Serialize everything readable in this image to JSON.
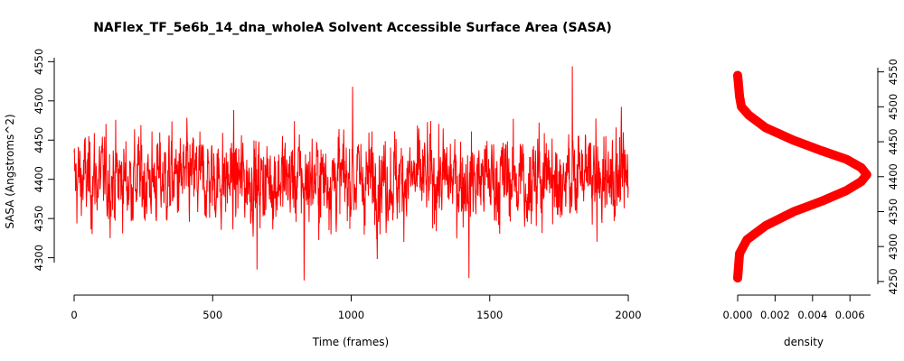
{
  "chart_data": [
    {
      "type": "line",
      "title": "NAFlex_TF_5e6b_14_dna_wholeA Solvent Accessible Surface Area (SASA)",
      "xlabel": "Time (frames)",
      "ylabel": "SASA (Angstroms^2)",
      "xlim": [
        0,
        2000
      ],
      "ylim": [
        4265,
        4555
      ],
      "x_ticks": [
        "0",
        "500",
        "1000",
        "1500",
        "2000"
      ],
      "y_ticks": [
        "4300",
        "4350",
        "4400",
        "4450",
        "4500",
        "4550"
      ],
      "grid": false,
      "color": "#ff0000",
      "series": [
        {
          "x": [
            0,
            2000
          ],
          "y_mean": 4400,
          "y_sd": 30,
          "y_min": 4271,
          "y_max": 4544,
          "peaks": [
            {
              "x": 1798,
              "y": 4544
            },
            {
              "x": 830,
              "y": 4271
            },
            {
              "x": 1425,
              "y": 4274
            },
            {
              "x": 1005,
              "y": 4518
            },
            {
              "x": 660,
              "y": 4285
            }
          ]
        }
      ]
    },
    {
      "type": "line",
      "title": "",
      "xlabel": "density",
      "ylabel": "",
      "xlim": [
        0,
        0.0071
      ],
      "ylim": [
        4246,
        4556
      ],
      "x_ticks": [
        "0.000",
        "0.002",
        "0.004",
        "0.006"
      ],
      "y_ticks": [
        "4250",
        "4300",
        "4350",
        "4400",
        "4450",
        "4500",
        "4550"
      ],
      "y_axis_side": "right",
      "grid": false,
      "color": "#ff0000",
      "series": [
        {
          "x": [
            0,
            0.0001,
            0.0005,
            0.0015,
            0.003,
            0.0045,
            0.0058,
            0.0066,
            0.0069,
            0.0066,
            0.0058,
            0.0045,
            0.003,
            0.0015,
            0.0006,
            0.0002,
            0.0001,
            0
          ],
          "y": [
            4255,
            4290,
            4310,
            4330,
            4350,
            4365,
            4380,
            4393,
            4403,
            4413,
            4425,
            4437,
            4452,
            4470,
            4488,
            4500,
            4515,
            4545
          ]
        }
      ]
    }
  ]
}
